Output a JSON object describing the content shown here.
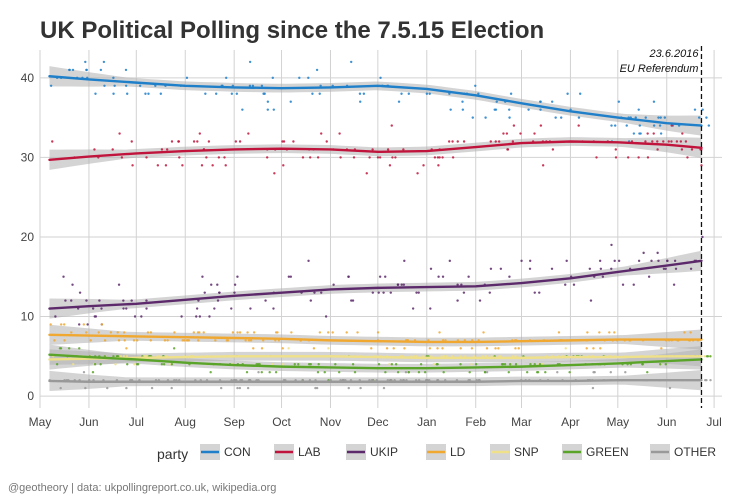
{
  "chart_data": {
    "type": "line",
    "title": "UK Political Polling since the 7.5.15 Election",
    "xlabel": "",
    "ylabel": "",
    "x_ticks": [
      "May",
      "Jun",
      "Jul",
      "Aug",
      "Sep",
      "Oct",
      "Nov",
      "Dec",
      "Jan",
      "Feb",
      "Mar",
      "Apr",
      "May",
      "Jun",
      "Jul"
    ],
    "x_tick_dates": [
      "2015-05-01",
      "2015-06-01",
      "2015-07-01",
      "2015-08-01",
      "2015-09-01",
      "2015-10-01",
      "2015-11-01",
      "2015-12-01",
      "2016-01-01",
      "2016-02-01",
      "2016-03-01",
      "2016-04-01",
      "2016-05-01",
      "2016-06-01",
      "2016-07-01"
    ],
    "xlim": [
      "2015-05-01",
      "2016-07-06"
    ],
    "ylim": [
      -1.5,
      43.5
    ],
    "y_ticks": [
      0,
      10,
      20,
      30,
      40
    ],
    "grid": true,
    "legend_title": "party",
    "legend_position": "bottom",
    "annotation": {
      "date": "2016-06-23",
      "label_line1": "23.6.2016",
      "label_line2": "EU Referendum"
    },
    "caption": "@geotheory | data: ukpollingreport.co.uk, wikipedia.org",
    "series": [
      {
        "name": "CON",
        "color": "#1f7fc9",
        "x": [
          "2015-05-07",
          "2015-06-01",
          "2015-07-01",
          "2015-08-01",
          "2015-09-01",
          "2015-10-01",
          "2015-11-01",
          "2015-12-01",
          "2016-01-01",
          "2016-02-01",
          "2016-03-01",
          "2016-04-01",
          "2016-05-01",
          "2016-06-01",
          "2016-06-23"
        ],
        "y": [
          40.2,
          39.8,
          39.4,
          39.0,
          38.8,
          38.7,
          38.8,
          39.0,
          38.6,
          37.8,
          36.8,
          35.8,
          35.0,
          34.3,
          34.0
        ]
      },
      {
        "name": "LAB",
        "color": "#c0143c",
        "x": [
          "2015-05-07",
          "2015-06-01",
          "2015-07-01",
          "2015-08-01",
          "2015-09-01",
          "2015-10-01",
          "2015-11-01",
          "2015-12-01",
          "2016-01-01",
          "2016-02-01",
          "2016-03-01",
          "2016-04-01",
          "2016-05-01",
          "2016-06-01",
          "2016-06-23"
        ],
        "y": [
          29.7,
          30.1,
          30.5,
          30.8,
          31.0,
          31.1,
          31.0,
          30.7,
          30.8,
          31.3,
          31.8,
          32.0,
          31.9,
          31.6,
          31.2
        ]
      },
      {
        "name": "UKIP",
        "color": "#5c2a6b",
        "x": [
          "2015-05-07",
          "2015-06-01",
          "2015-07-01",
          "2015-08-01",
          "2015-09-01",
          "2015-10-01",
          "2015-11-01",
          "2015-12-01",
          "2016-01-01",
          "2016-02-01",
          "2016-03-01",
          "2016-04-01",
          "2016-05-01",
          "2016-06-01",
          "2016-06-23"
        ],
        "y": [
          11.0,
          11.3,
          11.6,
          12.1,
          12.6,
          13.0,
          13.4,
          13.6,
          13.7,
          13.8,
          14.2,
          14.8,
          15.6,
          16.4,
          17.0
        ]
      },
      {
        "name": "LD",
        "color": "#f0a830",
        "x": [
          "2015-05-07",
          "2015-06-01",
          "2015-07-01",
          "2015-08-01",
          "2015-09-01",
          "2015-10-01",
          "2015-11-01",
          "2015-12-01",
          "2016-01-01",
          "2016-02-01",
          "2016-03-01",
          "2016-04-01",
          "2016-05-01",
          "2016-06-01",
          "2016-06-23"
        ],
        "y": [
          7.7,
          7.6,
          7.5,
          7.4,
          7.3,
          7.2,
          7.0,
          6.9,
          6.8,
          6.8,
          6.9,
          7.0,
          7.1,
          7.1,
          7.1
        ]
      },
      {
        "name": "SNP",
        "color": "#efe08a",
        "x": [
          "2015-05-07",
          "2015-06-01",
          "2015-07-01",
          "2015-08-01",
          "2015-09-01",
          "2015-10-01",
          "2015-11-01",
          "2015-12-01",
          "2016-01-01",
          "2016-02-01",
          "2016-03-01",
          "2016-04-01",
          "2016-05-01",
          "2016-06-01",
          "2016-06-23"
        ],
        "y": [
          4.6,
          4.7,
          4.8,
          4.9,
          5.0,
          5.0,
          5.0,
          4.9,
          4.8,
          4.8,
          4.8,
          4.9,
          4.9,
          5.0,
          5.0
        ]
      },
      {
        "name": "GREEN",
        "color": "#5aa42a",
        "x": [
          "2015-05-07",
          "2015-06-01",
          "2015-07-01",
          "2015-08-01",
          "2015-09-01",
          "2015-10-01",
          "2015-11-01",
          "2015-12-01",
          "2016-01-01",
          "2016-02-01",
          "2016-03-01",
          "2016-04-01",
          "2016-05-01",
          "2016-06-01",
          "2016-06-23"
        ],
        "y": [
          5.2,
          4.9,
          4.6,
          4.2,
          3.9,
          3.7,
          3.6,
          3.5,
          3.5,
          3.6,
          3.7,
          3.9,
          4.1,
          4.4,
          4.6
        ]
      },
      {
        "name": "OTHER",
        "color": "#999999",
        "x": [
          "2015-05-07",
          "2015-06-01",
          "2015-07-01",
          "2015-08-01",
          "2015-09-01",
          "2015-10-01",
          "2015-11-01",
          "2015-12-01",
          "2016-01-01",
          "2016-02-01",
          "2016-03-01",
          "2016-04-01",
          "2016-05-01",
          "2016-06-01",
          "2016-06-23"
        ],
        "y": [
          1.9,
          1.8,
          1.8,
          1.8,
          1.8,
          1.8,
          1.8,
          1.8,
          1.8,
          1.8,
          1.9,
          1.9,
          2.0,
          2.0,
          2.0
        ]
      }
    ]
  }
}
